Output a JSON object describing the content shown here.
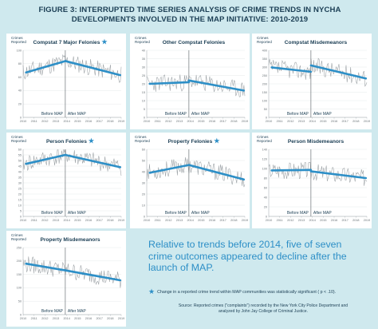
{
  "title": {
    "line1": "FIGURE 3: INTERRUPTED TIME SERIES ANALYSIS OF CRIME TRENDS IN NYCHA",
    "line2": "DEVELOPMENTS INVOLVED IN THE MAP INITIATIVE: 2010-2019"
  },
  "callout": "Relative to trends before 2014, five of seven crime outcomes appeared to decline after the launch of MAP.",
  "note": {
    "star": "★",
    "text": "Change in a reported crime trend within MAP communities was statistically significant ( p < .10)."
  },
  "source": {
    "line1": "Source: Reported crimes (\"complaints\") recorded by the New York City Police Department and",
    "line2": "analyzed by John Jay College of Criminal Justice."
  },
  "colors": {
    "background": "#cfe9ee",
    "trend": "#2d8fc7",
    "series": "#9aa0a4",
    "text": "#1c3f55"
  },
  "chart_data": [
    {
      "type": "line",
      "title": "Compstat 7 Major Felonies",
      "significant": true,
      "ylabel_line1": "Crimes",
      "ylabel_line2": "Reported",
      "ylim": [
        0,
        100
      ],
      "yticks": [
        0,
        20,
        40,
        60,
        80,
        100
      ],
      "xticks": [
        "2010",
        "2011",
        "2012",
        "2013",
        "2014",
        "2015",
        "2016",
        "2017",
        "2018",
        "2019"
      ],
      "before_label": "Before MAP",
      "after_label": "After MAP",
      "trend_before": [
        67,
        84
      ],
      "trend_after": [
        84,
        63
      ],
      "series_seed": 11
    },
    {
      "type": "line",
      "title": "Other Compstat Felonies",
      "significant": false,
      "ylabel_line1": "Crimes",
      "ylabel_line2": "Reported",
      "ylim": [
        0,
        40
      ],
      "yticks": [
        0,
        5,
        10,
        15,
        20,
        25,
        30,
        35,
        40
      ],
      "xticks": [
        "2010",
        "2011",
        "2012",
        "2013",
        "2014",
        "2015",
        "2016",
        "2017",
        "2018",
        "2019"
      ],
      "before_label": "Before MAP",
      "after_label": "After MAP",
      "trend_before": [
        20,
        21
      ],
      "trend_after": [
        22,
        16
      ],
      "series_seed": 23
    },
    {
      "type": "line",
      "title": "Compstat Misdemeanors",
      "significant": false,
      "ylabel_line1": "Crimes",
      "ylabel_line2": "Reported",
      "ylim": [
        0,
        400
      ],
      "yticks": [
        0,
        50,
        100,
        150,
        200,
        250,
        300,
        350,
        400
      ],
      "xticks": [
        "2010",
        "2011",
        "2012",
        "2013",
        "2014",
        "2015",
        "2016",
        "2017",
        "2018",
        "2019"
      ],
      "before_label": "Before MAP",
      "after_label": "After MAP",
      "trend_before": [
        298,
        272
      ],
      "trend_after": [
        310,
        232
      ],
      "series_seed": 37
    },
    {
      "type": "line",
      "title": "Person Felonies",
      "significant": true,
      "ylabel_line1": "Crimes",
      "ylabel_line2": "Reported",
      "ylim": [
        0,
        60
      ],
      "yticks": [
        0,
        5,
        10,
        15,
        20,
        25,
        30,
        35,
        40,
        45,
        50,
        55,
        60
      ],
      "xticks": [
        "2010",
        "2011",
        "2012",
        "2013",
        "2014",
        "2015",
        "2016",
        "2017",
        "2018",
        "2019"
      ],
      "before_label": "Before MAP",
      "after_label": "After MAP",
      "trend_before": [
        47,
        55
      ],
      "trend_after": [
        55,
        44
      ],
      "series_seed": 41
    },
    {
      "type": "line",
      "title": "Property Felonies",
      "significant": true,
      "ylabel_line1": "Crimes",
      "ylabel_line2": "Reported",
      "ylim": [
        0,
        60
      ],
      "yticks": [
        0,
        10,
        20,
        30,
        40,
        50,
        60
      ],
      "xticks": [
        "2010",
        "2011",
        "2012",
        "2013",
        "2014",
        "2015",
        "2016",
        "2017",
        "2018",
        "2019"
      ],
      "before_label": "Before MAP",
      "after_label": "After MAP",
      "trend_before": [
        39,
        46
      ],
      "trend_after": [
        46,
        33
      ],
      "series_seed": 53
    },
    {
      "type": "line",
      "title": "Person Misdemeanors",
      "significant": false,
      "ylabel_line1": "Crimes",
      "ylabel_line2": "Reported",
      "ylim": [
        0,
        140
      ],
      "yticks": [
        0,
        20,
        40,
        60,
        80,
        100,
        120,
        140
      ],
      "xticks": [
        "2010",
        "2011",
        "2012",
        "2013",
        "2014",
        "2015",
        "2016",
        "2017",
        "2018",
        "2019"
      ],
      "before_label": "Before MAP",
      "after_label": "After MAP",
      "trend_before": [
        96,
        97
      ],
      "trend_after": [
        94,
        80
      ],
      "series_seed": 67
    },
    {
      "type": "line",
      "title": "Property Misdemeanors",
      "significant": false,
      "ylabel_line1": "Crimes",
      "ylabel_line2": "Reported",
      "ylim": [
        0,
        250
      ],
      "yticks": [
        0,
        50,
        100,
        150,
        200,
        250
      ],
      "xticks": [
        "2010",
        "2011",
        "2012",
        "2013",
        "2014",
        "2015",
        "2016",
        "2017",
        "2018",
        "2019"
      ],
      "before_label": "Before MAP",
      "after_label": "After MAP",
      "trend_before": [
        190,
        165
      ],
      "trend_after": [
        165,
        128
      ],
      "series_seed": 79
    }
  ]
}
